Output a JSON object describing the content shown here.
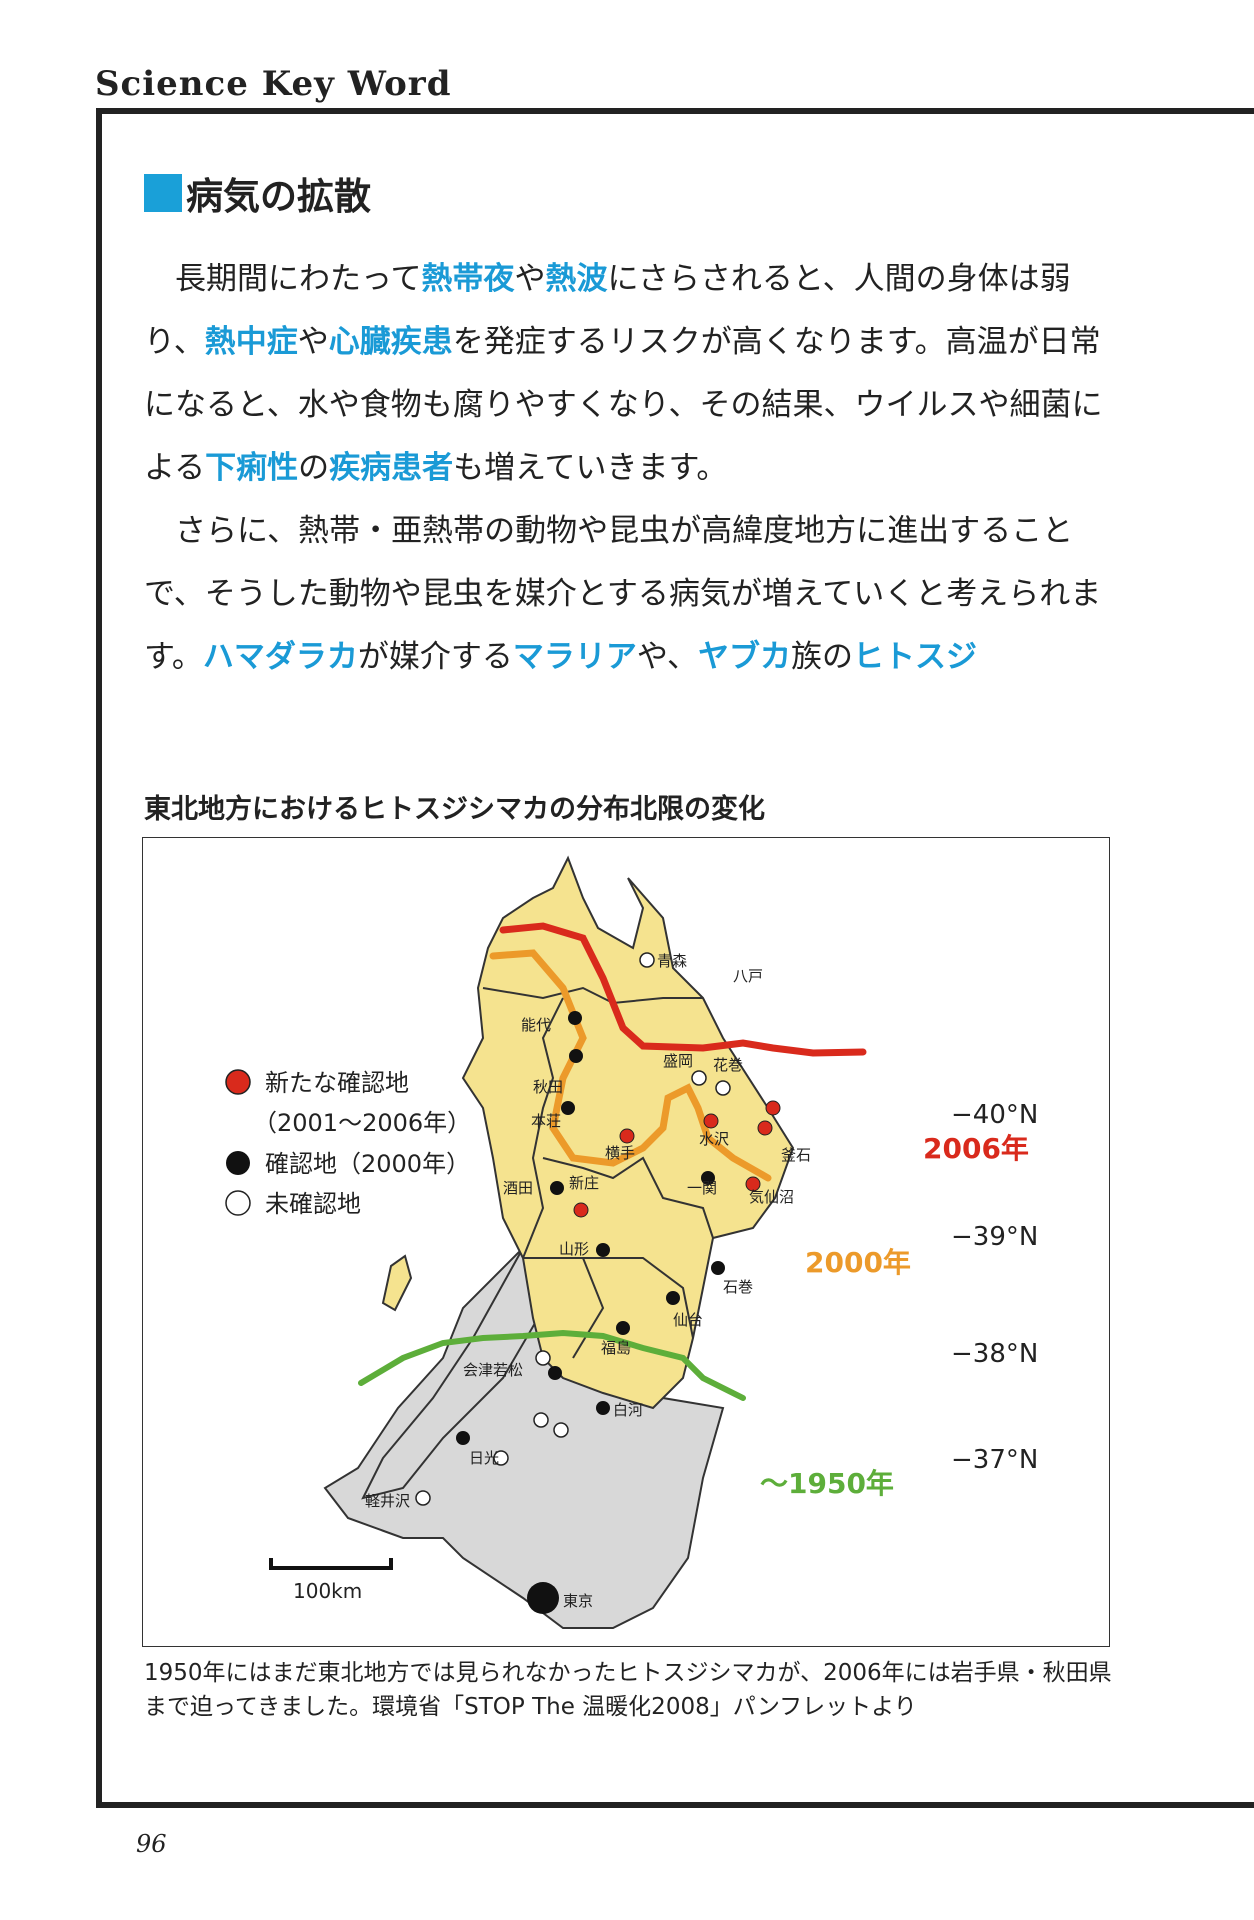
{
  "header": "Science Key Word",
  "section_title": "病気の拡散",
  "paragraphs": [
    [
      {
        "t": "長期間にわたって"
      },
      {
        "t": "熱帯夜",
        "kw": true
      },
      {
        "t": "や"
      },
      {
        "t": "熱波",
        "kw": true
      },
      {
        "t": "にさらされると、人間の身体は弱り、"
      },
      {
        "t": "熱中症",
        "kw": true
      },
      {
        "t": "や"
      },
      {
        "t": "心臓疾患",
        "kw": true
      },
      {
        "t": "を発症するリスクが高くなります。高温が日常になると、水や食物も腐りやすくなり、その結果、ウイルスや細菌による"
      },
      {
        "t": "下痢性",
        "kw": true
      },
      {
        "t": "の"
      },
      {
        "t": "疾病患者",
        "kw": true
      },
      {
        "t": "も増えていきます。"
      }
    ],
    [
      {
        "t": "さらに、熱帯・亜熱帯の動物や昆虫が高緯度地方に進出することで、そうした動物や昆虫を媒介とする病気が増えていくと考えられます。"
      },
      {
        "t": "ハマダラカ",
        "kw": true
      },
      {
        "t": "が媒介する"
      },
      {
        "t": "マラリア",
        "kw": true
      },
      {
        "t": "や、"
      },
      {
        "t": "ヤブカ",
        "kw": true
      },
      {
        "t": "族の"
      },
      {
        "t": "ヒトスジ",
        "kw": true
      }
    ]
  ],
  "figure": {
    "title": "東北地方におけるヒトスジシマカの分布北限の変化",
    "legend": {
      "new": "新たな確認地",
      "new_period": "（2001〜2006年）",
      "confirmed": "確認地（2000年）",
      "unconfirmed": "未確認地"
    },
    "lines": {
      "l2006": "2006年",
      "l2000": "2000年",
      "l1950": "〜1950年"
    },
    "latitudes": [
      "−40°N",
      "−39°N",
      "−38°N",
      "−37°N"
    ],
    "scale": "100km",
    "places": {
      "aomori": "青森",
      "hachinohe": "八戸",
      "noshiro": "能代",
      "akita": "秋田",
      "honjo": "本荘",
      "sakata": "酒田",
      "morioka": "盛岡",
      "hanamaki": "花巻",
      "mizusawa": "水沢",
      "kamaishi": "釜石",
      "yokote": "横手",
      "ichinoseki": "一関",
      "kesennuma": "気仙沼",
      "shinjo": "新庄",
      "yamagata": "山形",
      "ishinomaki": "石巻",
      "sendai": "仙台",
      "fukushima": "福島",
      "aizu": "会津若松",
      "shirakawa": "白河",
      "nikko": "日光",
      "karuizawa": "軽井沢",
      "tokyo": "東京"
    },
    "colors": {
      "red": "#d92a1c",
      "orange": "#ec9a2a",
      "green": "#5dae3a",
      "yellow": "#f5e38f",
      "gray": "#d8d8d8"
    }
  },
  "caption": "1950年にはまだ東北地方では見られなかったヒトスジシマカが、2006年には岩手県・秋田県まで迫ってきました。環境省「STOP The 温暖化2008」パンフレットより",
  "page_number": "96"
}
